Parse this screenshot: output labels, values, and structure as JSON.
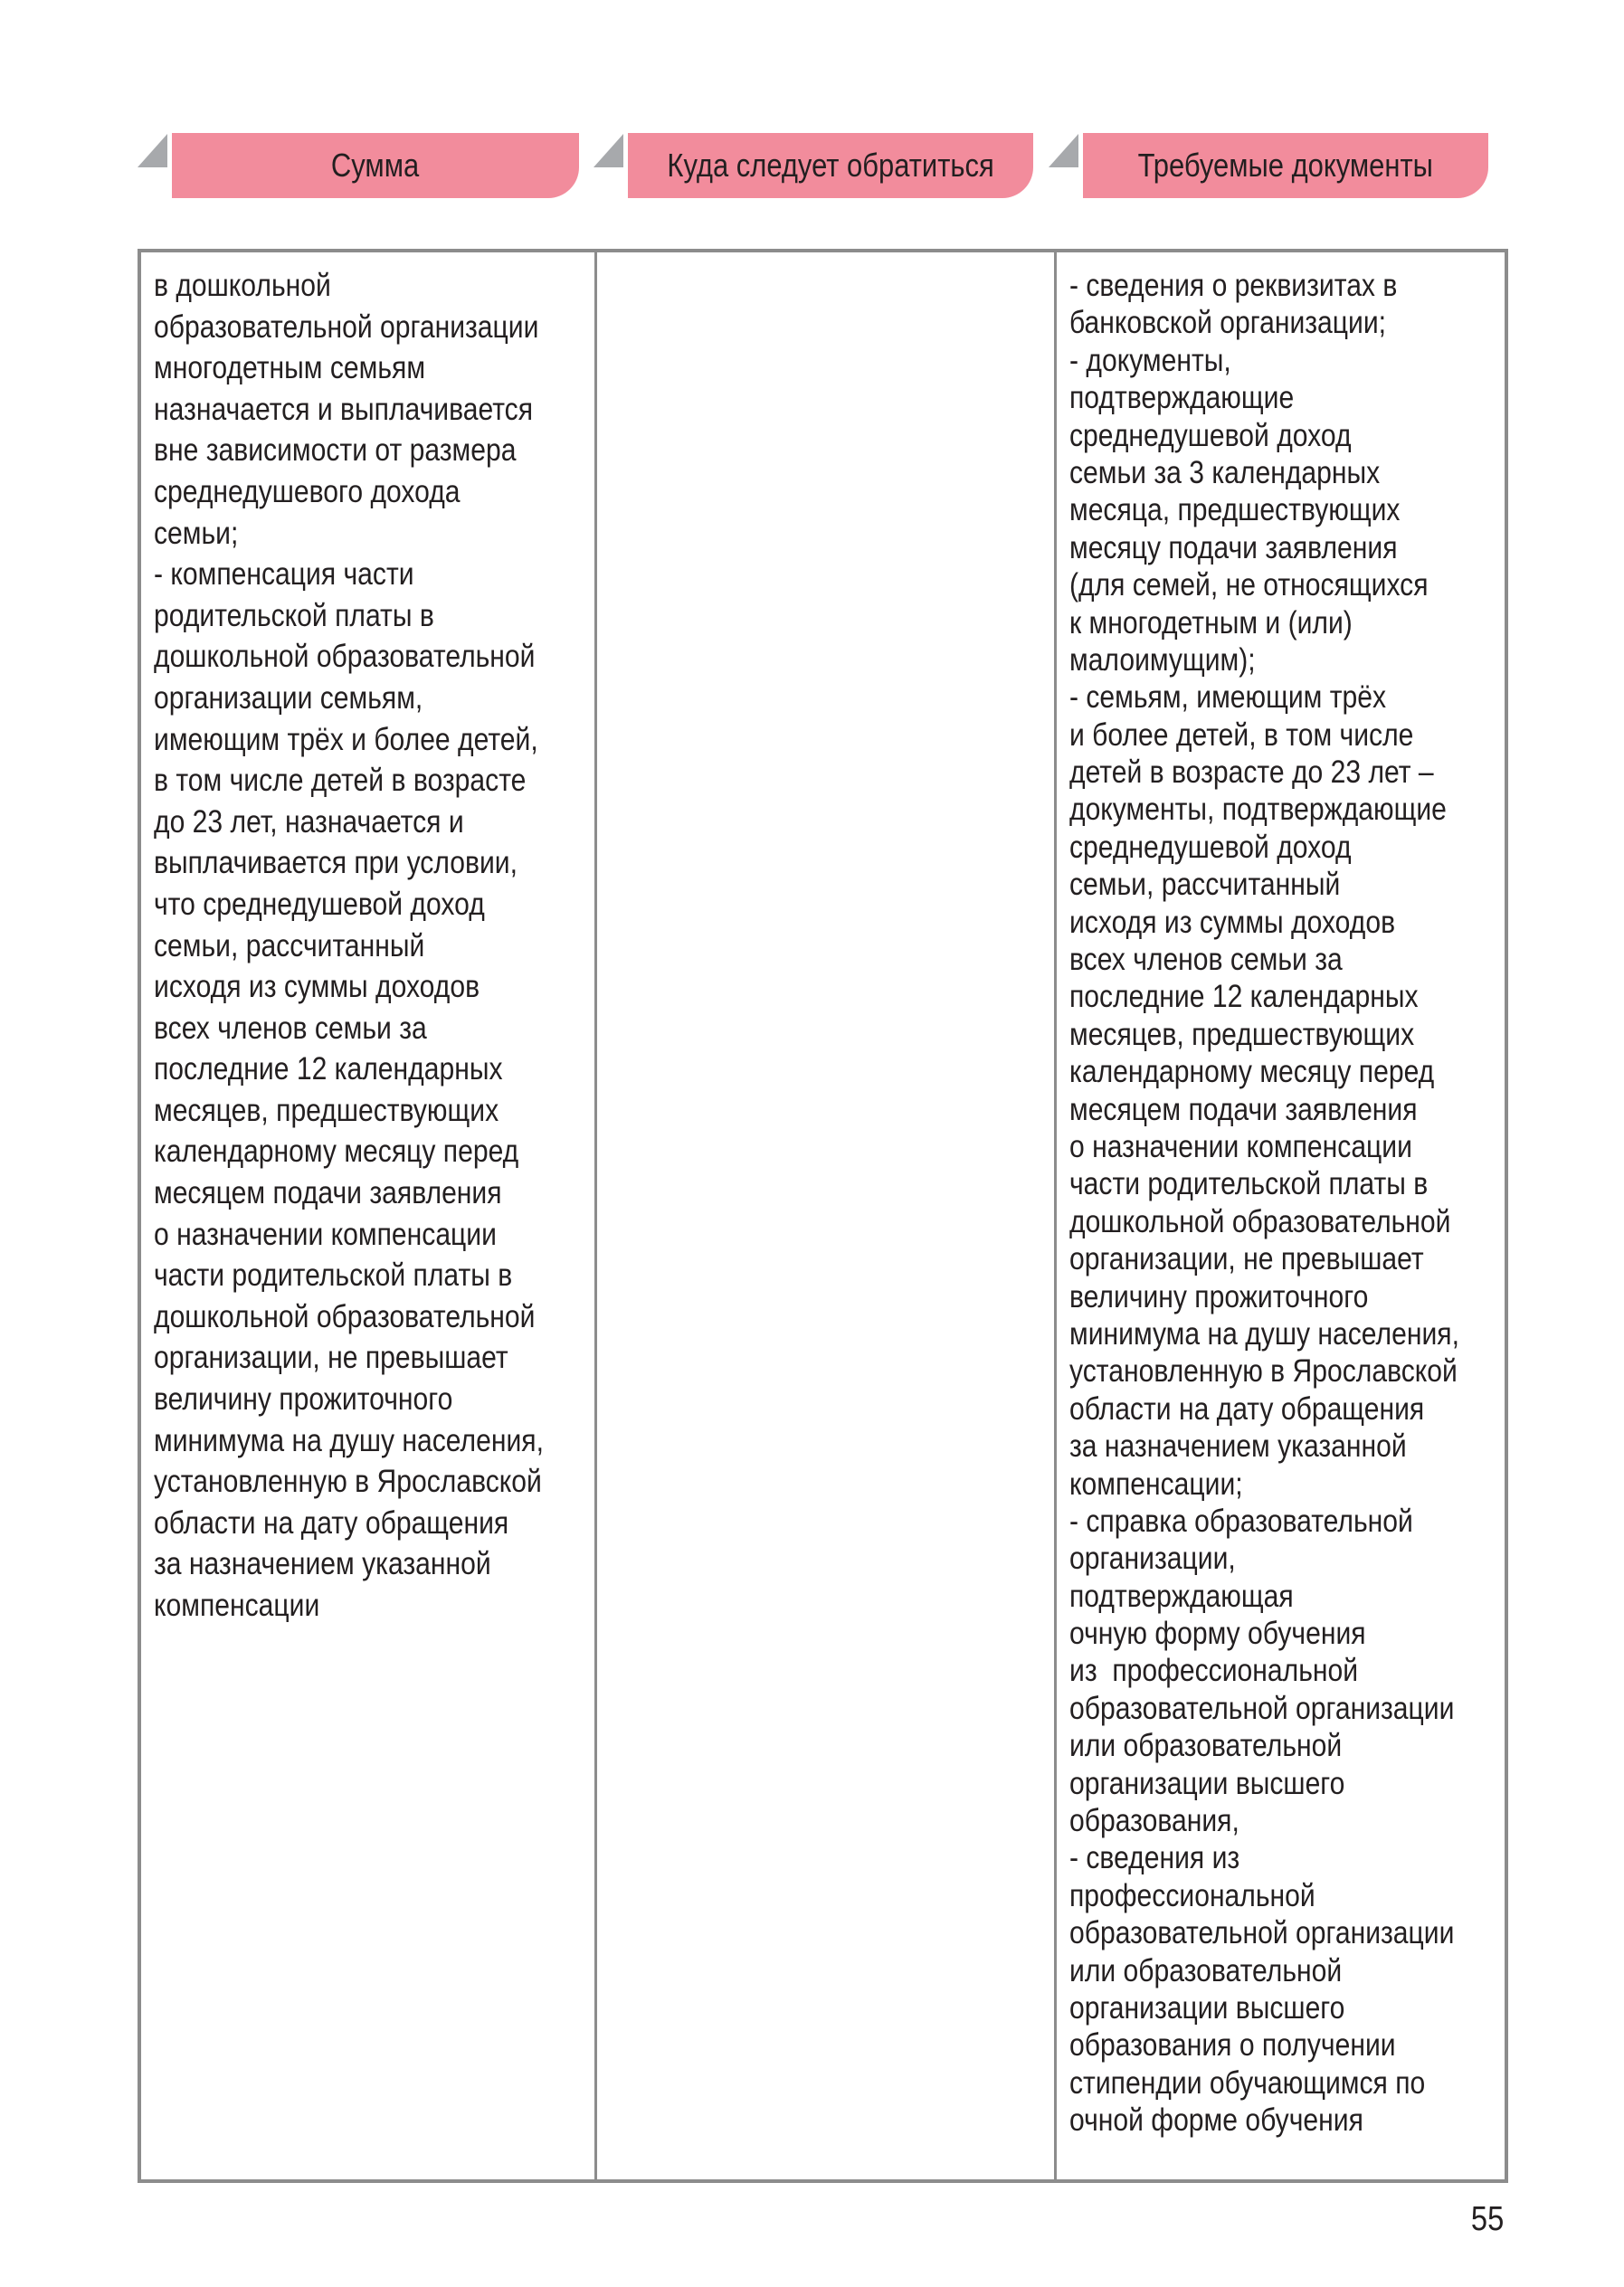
{
  "headers": [
    "Сумма",
    "Куда следует обратиться",
    "Требуемые документы"
  ],
  "colors": {
    "header_fill": "#f28c9c",
    "header_corner": "#a7a9ac",
    "table_border": "#8c8c8c"
  },
  "table": {
    "amount_lines": [
      "в дошкольной",
      "образовательной организации",
      "многодетным семьям",
      "назначается и выплачивается",
      "вне зависимости от размера",
      "среднедушевого дохода",
      "семьи;",
      "- компенсация части",
      "родительской платы в",
      "дошкольной образовательной",
      "организации семьям,",
      "имеющим трёх и более детей,",
      "в том числе детей в возрасте",
      "до 23 лет, назначается и",
      "выплачивается при условии,",
      "что среднедушевой доход",
      "семьи, рассчитанный",
      "исходя из суммы доходов",
      "всех членов семьи за",
      "последние 12 календарных",
      "месяцев, предшествующих",
      "календарному месяцу перед",
      "месяцем подачи заявления",
      "о назначении компенсации",
      "части родительской платы в",
      "дошкольной образовательной",
      "организации, не превышает",
      "величину прожиточного",
      "минимума на душу населения,",
      "установленную в Ярославской",
      "области на дату обращения",
      "за назначением указанной",
      "компенсации"
    ],
    "where_lines": [],
    "documents_lines": [
      "- сведения о реквизитах в",
      "банковской организации;",
      "- документы,",
      "подтверждающие",
      "среднедушевой доход",
      "семьи за 3 календарных",
      "месяца, предшествующих",
      "месяцу подачи заявления",
      "(для семей, не относящихся",
      "к многодетным и (или)",
      "малоимущим);",
      "- семьям, имеющим трёх",
      "и более детей, в том числе",
      "детей в возрасте до 23 лет –",
      "документы, подтверждающие",
      "среднедушевой доход",
      "семьи, рассчитанный",
      "исходя из суммы доходов",
      "всех членов семьи за",
      "последние 12 календарных",
      "месяцев, предшествующих",
      "календарному месяцу перед",
      "месяцем подачи заявления",
      "о назначении компенсации",
      "части родительской платы в",
      "дошкольной образовательной",
      "организации, не превышает",
      "величину прожиточного",
      "минимума на душу населения,",
      "установленную в Ярославской",
      "области на дату обращения",
      "за назначением указанной",
      "компенсации;",
      "- справка образовательной",
      "организации,",
      "подтверждающая",
      "очную форму обучения",
      "из  профессиональной",
      "образовательной организации",
      "или образовательной",
      "организации высшего",
      "образования,",
      "- сведения из",
      "профессиональной",
      "образовательной организации",
      "или образовательной",
      "организации высшего",
      "образования о получении",
      "стипендии обучающимся по",
      "очной форме обучения"
    ]
  },
  "page_number": "55"
}
